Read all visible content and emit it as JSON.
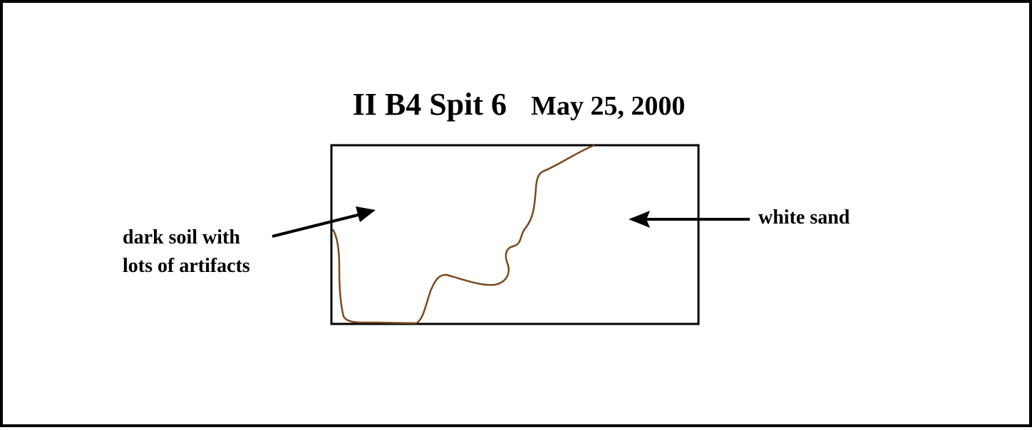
{
  "title": {
    "main": "II B4 Spit 6",
    "date": "May 25, 2000"
  },
  "labels": {
    "dark_soil_line1": "dark soil with",
    "dark_soil_line2": "lots of artifacts",
    "white_sand": "white sand"
  },
  "colors": {
    "boundary": "#7a4a1e",
    "outline": "#000000"
  }
}
